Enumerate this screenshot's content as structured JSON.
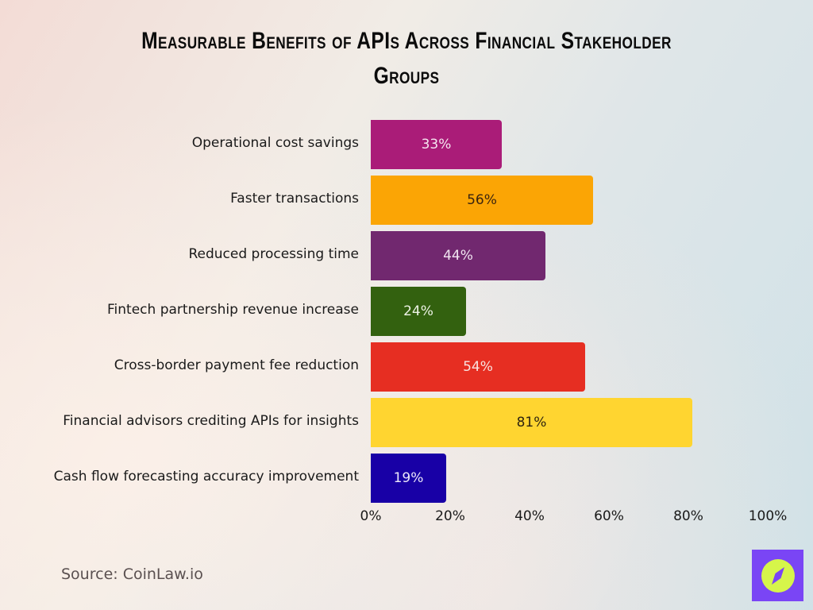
{
  "title": {
    "line1": "Measurable Benefits of APIs Across Financial Stakeholder",
    "line2": "Groups"
  },
  "chart_data": {
    "type": "bar",
    "orientation": "horizontal",
    "title": "Measurable Benefits of APIs Across Financial Stakeholder Groups",
    "xlabel": "",
    "ylabel": "",
    "xlim": [
      0,
      100
    ],
    "grid": false,
    "legend": "none",
    "categories": [
      "Operational cost savings",
      "Faster transactions",
      "Reduced processing time",
      "Fintech partnership revenue increase",
      "Cross-border payment fee reduction",
      "Financial advisors crediting APIs for insights",
      "Cash flow forecasting accuracy improvement"
    ],
    "values": [
      33,
      56,
      44,
      24,
      54,
      81,
      19
    ],
    "value_labels": [
      "33%",
      "56%",
      "44%",
      "24%",
      "54%",
      "81%",
      "19%"
    ],
    "colors": [
      "#aa1c78",
      "#fba505",
      "#71286f",
      "#33610f",
      "#e62e22",
      "#ffd530",
      "#1800a6"
    ],
    "label_colors": [
      "#f5e6f0",
      "#3a2410",
      "#f1e6f1",
      "#eef3e6",
      "#f8e3e0",
      "#2e2410",
      "#ece8fa"
    ],
    "x_ticks": [
      "0%",
      "20%",
      "40%",
      "60%",
      "80%",
      "100%"
    ]
  },
  "footer": {
    "source": "Source: CoinLaw.io",
    "logo_icon": "compass-icon",
    "logo_bg": "#7a45f5",
    "logo_fg": "#d6f54a"
  }
}
